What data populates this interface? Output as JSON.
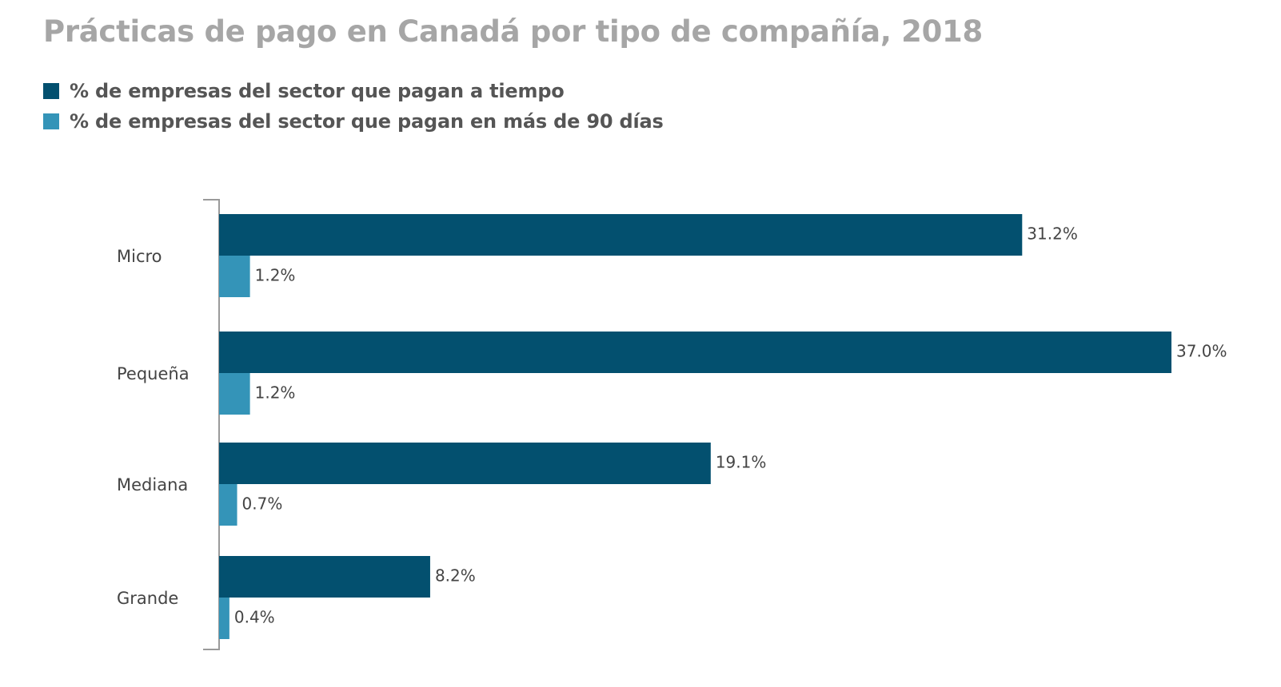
{
  "chart_data": {
    "type": "bar",
    "orientation": "horizontal",
    "title": "Prácticas de pago en Canadá por tipo de compañía, 2018",
    "categories": [
      "Micro",
      "Pequeña",
      "Mediana",
      "Grande"
    ],
    "series": [
      {
        "name": "% de empresas del sector que pagan a tiempo",
        "color": "#03506f",
        "values": [
          31.2,
          37.0,
          19.1,
          8.2
        ],
        "labels": [
          "31.2%",
          "37.0%",
          "19.1%",
          "8.2%"
        ]
      },
      {
        "name": "% de empresas del sector que pagan en más de 90 días",
        "color": "#3494b8",
        "values": [
          1.2,
          1.2,
          0.7,
          0.4
        ],
        "labels": [
          "1.2%",
          "1.2%",
          "0.7%",
          "0.4%"
        ]
      }
    ],
    "xlim": [
      0,
      37.0
    ],
    "grid": false,
    "legend_position": "top-left"
  }
}
